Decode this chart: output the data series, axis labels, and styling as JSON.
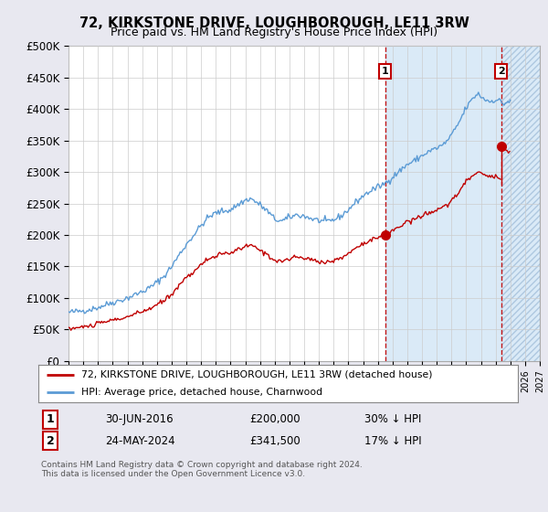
{
  "title": "72, KIRKSTONE DRIVE, LOUGHBOROUGH, LE11 3RW",
  "subtitle": "Price paid vs. HM Land Registry's House Price Index (HPI)",
  "legend_line1": "72, KIRKSTONE DRIVE, LOUGHBOROUGH, LE11 3RW (detached house)",
  "legend_line2": "HPI: Average price, detached house, Charnwood",
  "annotation1_label": "1",
  "annotation1_date": "30-JUN-2016",
  "annotation1_price": "£200,000",
  "annotation1_note": "30% ↓ HPI",
  "annotation2_label": "2",
  "annotation2_date": "24-MAY-2024",
  "annotation2_price": "£341,500",
  "annotation2_note": "17% ↓ HPI",
  "footnote": "Contains HM Land Registry data © Crown copyright and database right 2024.\nThis data is licensed under the Open Government Licence v3.0.",
  "hpi_color": "#5b9bd5",
  "hpi_fill_color": "#daeaf7",
  "price_color": "#c00000",
  "vline_color": "#c00000",
  "annotation_box_color": "#c00000",
  "background_color": "#e8e8f0",
  "plot_bg_color": "#ffffff",
  "hatch_bg_color": "#e0e8f0",
  "ylim": [
    0,
    500000
  ],
  "yticks": [
    0,
    50000,
    100000,
    150000,
    200000,
    250000,
    300000,
    350000,
    400000,
    450000,
    500000
  ],
  "purchase1_year": 2016.5,
  "purchase1_price": 200000,
  "purchase2_year": 2024.37,
  "purchase2_price": 341500,
  "xmin": 1995,
  "xmax": 2027
}
